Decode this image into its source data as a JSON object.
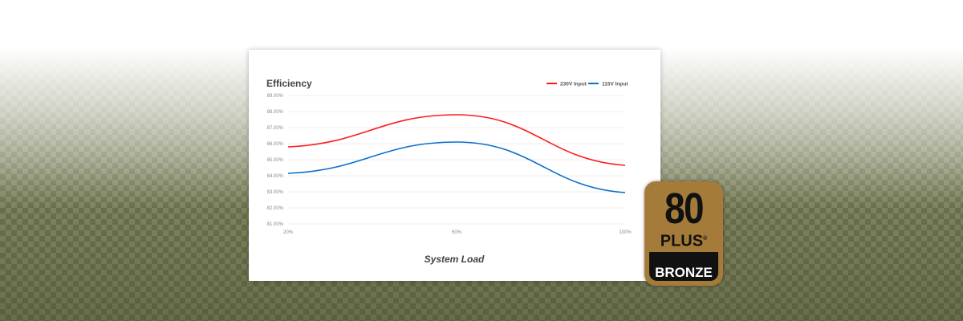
{
  "chart_data": {
    "type": "line",
    "title": "Efficiency",
    "xlabel": "System Load",
    "ylabel": "",
    "categories": [
      "20%",
      "50%",
      "100%"
    ],
    "ylim": [
      81,
      89
    ],
    "yticks": [
      "81.00%",
      "82.00%",
      "83.00%",
      "84.00%",
      "85.00%",
      "86.00%",
      "87.00%",
      "88.00%",
      "89.00%"
    ],
    "grid": true,
    "legend": "top-right",
    "series": [
      {
        "name": "230V Input",
        "color": "#ff1a1a",
        "values": [
          85.8,
          87.8,
          84.65
        ]
      },
      {
        "name": "115V Input",
        "color": "#0a6fc9",
        "values": [
          84.15,
          86.1,
          82.95
        ]
      }
    ]
  },
  "badge": {
    "number": "80",
    "plus": "PLUS",
    "registered": "®",
    "tier": "BRONZE"
  }
}
